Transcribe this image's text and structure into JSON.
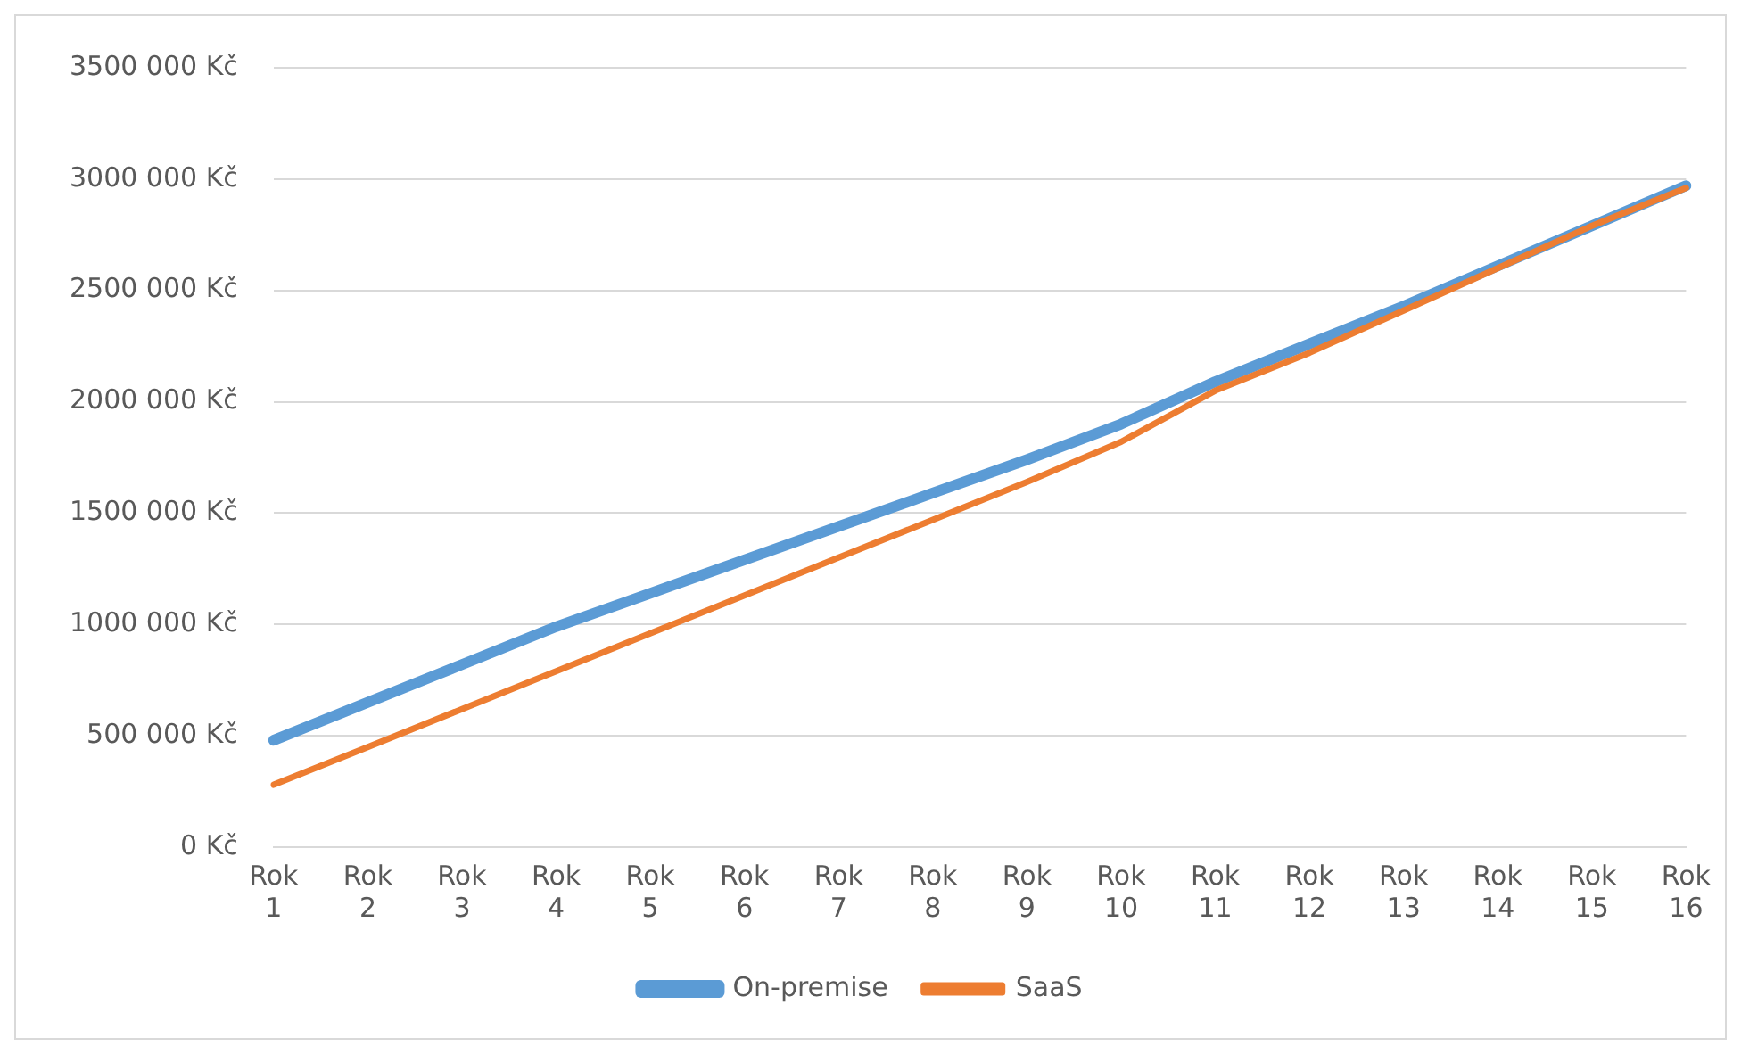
{
  "chart_data": {
    "type": "line",
    "categories": [
      "Rok 1",
      "Rok 2",
      "Rok 3",
      "Rok 4",
      "Rok 5",
      "Rok 6",
      "Rok 7",
      "Rok 8",
      "Rok 9",
      "Rok 10",
      "Rok 11",
      "Rok 12",
      "Rok 13",
      "Rok 14",
      "Rok 15",
      "Rok 16"
    ],
    "series": [
      {
        "name": "On-premise",
        "color": "#5b9bd5",
        "values": [
          480000,
          650000,
          820000,
          990000,
          1140000,
          1290000,
          1440000,
          1590000,
          1740000,
          1900000,
          2090000,
          2260000,
          2430000,
          2610000,
          2790000,
          2970000
        ]
      },
      {
        "name": "SaaS",
        "color": "#ed7d31",
        "values": [
          280000,
          450000,
          620000,
          790000,
          960000,
          1130000,
          1300000,
          1470000,
          1640000,
          1820000,
          2050000,
          2220000,
          2410000,
          2600000,
          2790000,
          2960000
        ]
      }
    ],
    "ylim": [
      0,
      3500000
    ],
    "yticks": [
      {
        "value": 0,
        "label": "0 Kč"
      },
      {
        "value": 500000,
        "label": "500 000 Kč"
      },
      {
        "value": 1000000,
        "label": "1000 000 Kč"
      },
      {
        "value": 1500000,
        "label": "1500 000 Kč"
      },
      {
        "value": 2000000,
        "label": "2000 000 Kč"
      },
      {
        "value": 2500000,
        "label": "2500 000 Kč"
      },
      {
        "value": 3000000,
        "label": "3000 000 Kč"
      },
      {
        "value": 3500000,
        "label": "3500 000 Kč"
      }
    ],
    "grid": "y",
    "legend": "bottom",
    "marker": "none",
    "line_style": "solid"
  }
}
